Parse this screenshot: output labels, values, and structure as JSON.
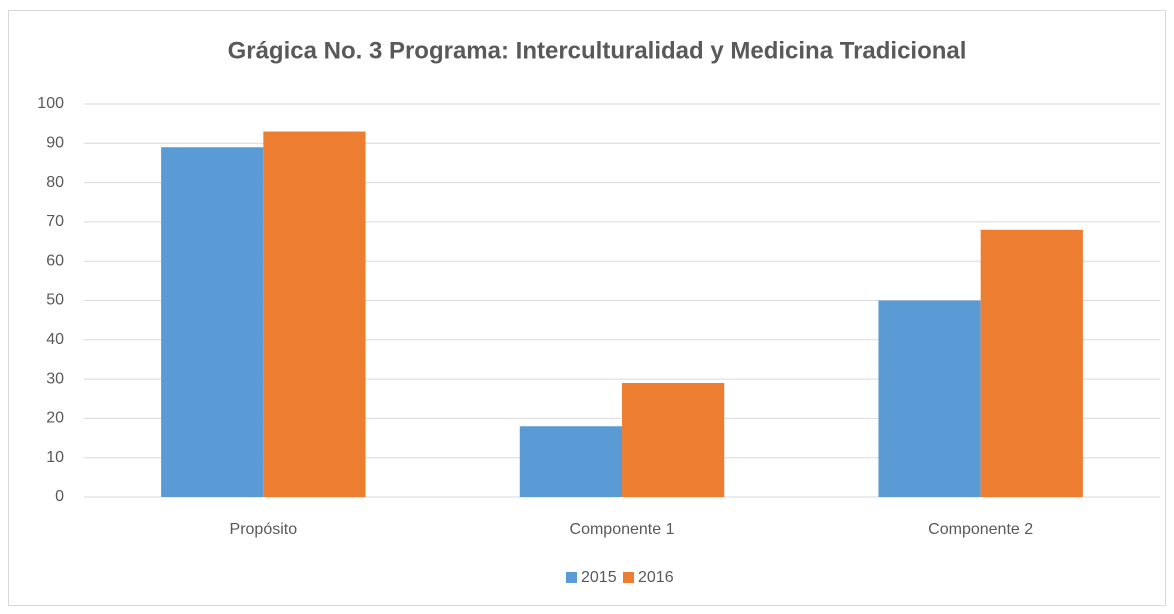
{
  "chart_data": {
    "type": "bar",
    "title": "Grágica No. 3 Programa:  Interculturalidad y Medicina Tradicional",
    "categories": [
      "Propósito",
      "Componente 1",
      "Componente 2"
    ],
    "series": [
      {
        "name": "2015",
        "color": "#5b9bd5",
        "values": [
          89,
          18,
          50
        ]
      },
      {
        "name": "2016",
        "color": "#ed7d31",
        "values": [
          93,
          29,
          68
        ]
      }
    ],
    "ylim": [
      0,
      100
    ],
    "yticks": [
      0,
      10,
      20,
      30,
      40,
      50,
      60,
      70,
      80,
      90,
      100
    ],
    "grid": true,
    "legend": "bottom"
  }
}
